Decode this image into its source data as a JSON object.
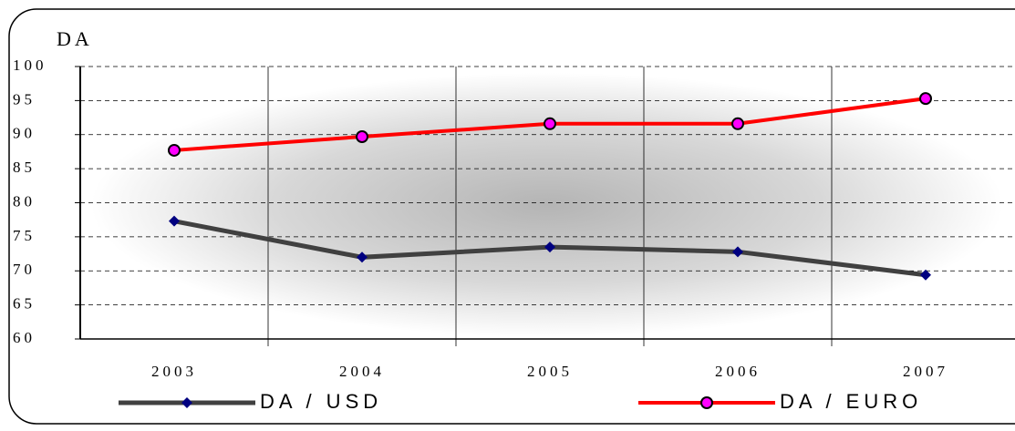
{
  "chart_data": {
    "type": "line",
    "y_label": "DA",
    "categories": [
      "2003",
      "2004",
      "2005",
      "2006",
      "2007"
    ],
    "series": [
      {
        "name": "DA / USD",
        "color": "#404040",
        "marker_color": "#000080",
        "values": [
          77.3,
          72.0,
          73.5,
          72.8,
          69.4
        ]
      },
      {
        "name": "DA / EURO",
        "color": "#ff0000",
        "marker_color": "#ff00ff",
        "values": [
          87.7,
          89.7,
          91.6,
          91.6,
          95.3
        ]
      }
    ],
    "ylim": [
      60,
      100
    ],
    "yticks": [
      60,
      65,
      70,
      75,
      80,
      85,
      90,
      95,
      100
    ],
    "grid": true
  }
}
